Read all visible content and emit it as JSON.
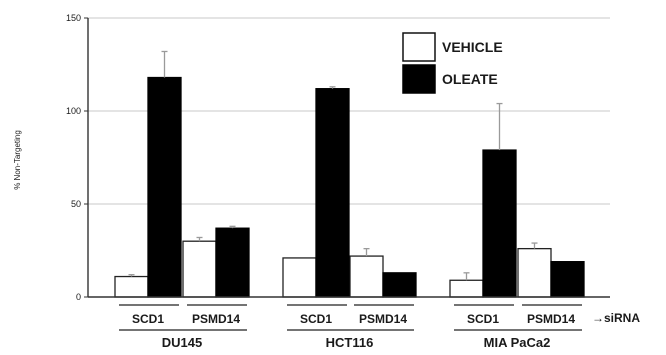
{
  "chart_data": {
    "type": "bar",
    "ylabel": "% Non-Targeting",
    "ylim": [
      0,
      150
    ],
    "yticks": [
      0,
      50,
      100,
      150
    ],
    "grid": true,
    "legend_position": "top-right",
    "groups": [
      {
        "label": "DU145",
        "subgroups": [
          "SCD1",
          "PSMD14"
        ]
      },
      {
        "label": "HCT116",
        "subgroups": [
          "SCD1",
          "PSMD14"
        ]
      },
      {
        "label": "MIA PaCa2",
        "subgroups": [
          "SCD1",
          "PSMD14"
        ]
      }
    ],
    "annotation": "→siRNA",
    "series": [
      {
        "name": "VEHICLE",
        "color": "#ffffff",
        "values": [
          11,
          30,
          21,
          22,
          9,
          26
        ],
        "errors": [
          1,
          2,
          0,
          4,
          4,
          3
        ]
      },
      {
        "name": "OLEATE",
        "color": "#000000",
        "values": [
          118,
          37,
          112,
          13,
          79,
          19
        ],
        "errors": [
          14,
          1,
          1,
          0,
          25,
          0
        ]
      }
    ]
  }
}
